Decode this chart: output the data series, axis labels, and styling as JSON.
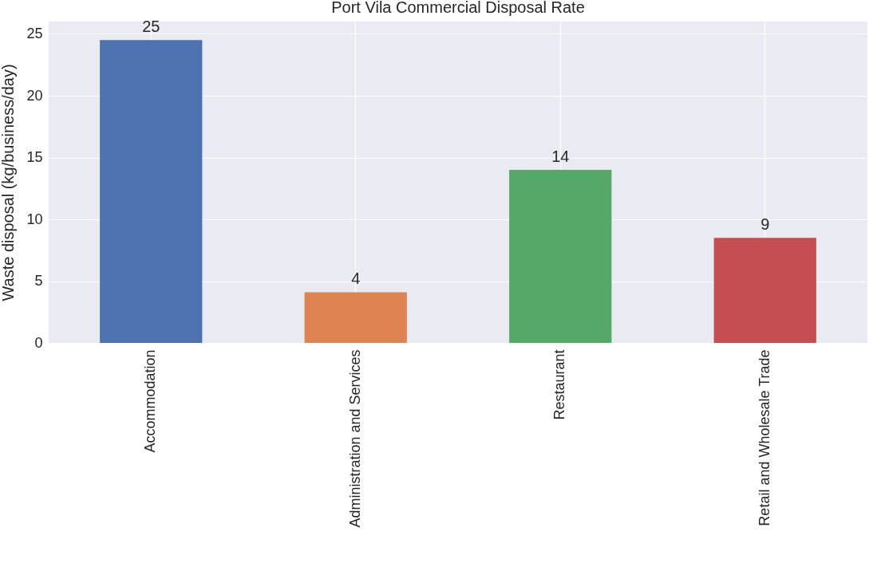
{
  "chart_data": {
    "type": "bar",
    "title": "Port Vila Commercial Disposal Rate",
    "ylabel": "Waste disposal (kg/business/day)",
    "categories": [
      "Accommodation",
      "Administration and Services",
      "Restaurant",
      "Retail and Wholesale Trade"
    ],
    "values": [
      24.5,
      4.1,
      14.0,
      8.5
    ],
    "colors": [
      "#4c72b0",
      "#dd8452",
      "#55a868",
      "#c44e52"
    ],
    "value_labels": [
      "25",
      "4",
      "14",
      "9"
    ],
    "ylim": [
      0,
      26
    ],
    "yticks": [
      0,
      5,
      10,
      15,
      20,
      25
    ],
    "grid": true
  }
}
